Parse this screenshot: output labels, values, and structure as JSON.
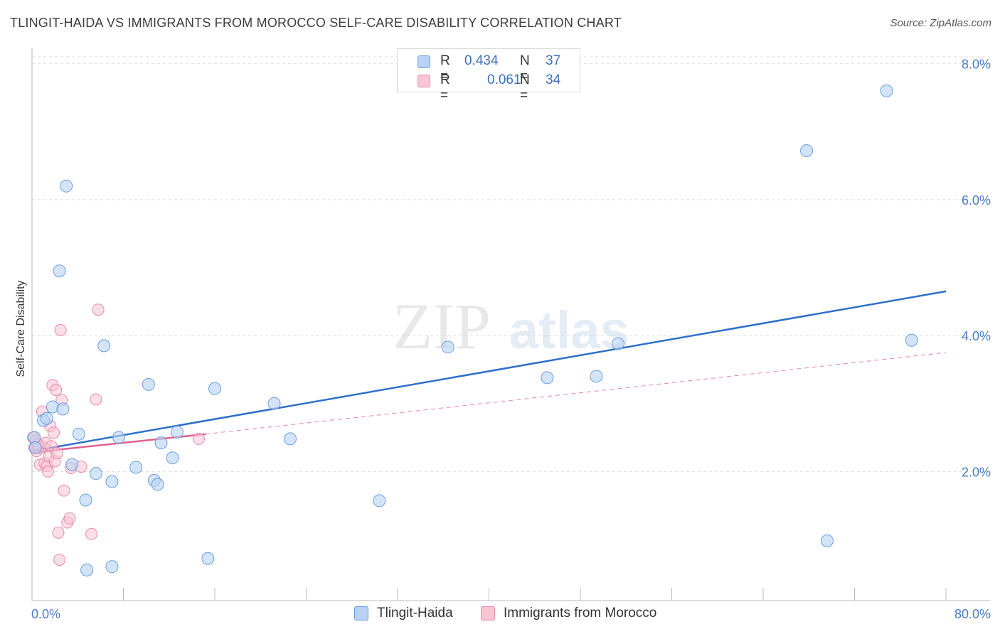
{
  "header": {
    "title": "TLINGIT-HAIDA VS IMMIGRANTS FROM MOROCCO SELF-CARE DISABILITY CORRELATION CHART",
    "source": "Source: ZipAtlas.com"
  },
  "watermark": {
    "zip": "ZIP",
    "atlas": "atlas"
  },
  "legend_top": [
    {
      "r_label": "R =",
      "r_value": "0.434",
      "n_label": "N =",
      "n_value": "37"
    },
    {
      "r_label": "R =",
      "r_value": "0.061",
      "n_label": "N =",
      "n_value": "34"
    }
  ],
  "colors": {
    "blue_fill": "#b7d2f3",
    "blue_stroke": "#6a9ee0",
    "blue_line": "#2f6fc8",
    "pink_fill": "#f8c5d4",
    "pink_stroke": "#e88aa8",
    "pink_line": "#e0628f",
    "tick_color": "#4a7cc9",
    "grid": "#dddddd"
  },
  "chart_data": {
    "type": "scatter",
    "title": "TLINGIT-HAIDA VS IMMIGRANTS FROM MOROCCO SELF-CARE DISABILITY CORRELATION CHART",
    "xlabel": "",
    "ylabel": "Self-Care Disability",
    "xlim": [
      0,
      80
    ],
    "ylim": [
      0.1,
      8.1
    ],
    "y_ticks": [
      2.0,
      4.0,
      6.0,
      8.0
    ],
    "y_tick_labels": [
      "2.0%",
      "4.0%",
      "6.0%",
      "8.0%"
    ],
    "x_tick_labels": [
      "0.0%",
      "80.0%"
    ],
    "legend": [
      "Tlingit-Haida",
      "Immigrants from Morocco"
    ],
    "series": [
      {
        "name": "Tlingit-Haida",
        "r": 0.434,
        "n": 37,
        "trend": {
          "x": [
            0,
            80
          ],
          "y": [
            2.3,
            4.65
          ],
          "style": "solid"
        },
        "points": [
          [
            0.2,
            2.5
          ],
          [
            1.0,
            2.75
          ],
          [
            1.3,
            2.78
          ],
          [
            1.8,
            2.95
          ],
          [
            2.4,
            4.95
          ],
          [
            2.7,
            2.92
          ],
          [
            3.0,
            6.2
          ],
          [
            3.5,
            2.1
          ],
          [
            4.1,
            2.55
          ],
          [
            4.7,
            1.58
          ],
          [
            4.8,
            0.55
          ],
          [
            5.6,
            1.97
          ],
          [
            6.3,
            3.85
          ],
          [
            7.0,
            1.85
          ],
          [
            7.0,
            0.6
          ],
          [
            7.6,
            2.5
          ],
          [
            9.1,
            2.06
          ],
          [
            10.2,
            3.28
          ],
          [
            10.7,
            1.87
          ],
          [
            11.0,
            1.81
          ],
          [
            11.3,
            2.42
          ],
          [
            12.3,
            2.2
          ],
          [
            12.7,
            2.58
          ],
          [
            15.4,
            0.72
          ],
          [
            16.0,
            3.22
          ],
          [
            21.2,
            3.0
          ],
          [
            22.6,
            2.48
          ],
          [
            30.4,
            1.57
          ],
          [
            36.4,
            3.83
          ],
          [
            45.1,
            3.38
          ],
          [
            49.4,
            3.4
          ],
          [
            51.3,
            3.88
          ],
          [
            67.8,
            6.72
          ],
          [
            69.6,
            0.98
          ],
          [
            74.8,
            7.6
          ],
          [
            77.0,
            3.93
          ],
          [
            0.3,
            2.35
          ]
        ]
      },
      {
        "name": "Immigrants from Morocco",
        "r": 0.061,
        "n": 34,
        "trend": {
          "x": [
            0,
            15.2
          ],
          "y": [
            2.28,
            2.55
          ],
          "style": "solid",
          "extension": {
            "x": [
              15.2,
              80
            ],
            "y": [
              2.55,
              3.75
            ],
            "style": "dashed"
          }
        },
        "points": [
          [
            0.1,
            2.5
          ],
          [
            0.2,
            2.35
          ],
          [
            0.3,
            2.45
          ],
          [
            0.4,
            2.3
          ],
          [
            0.6,
            2.35
          ],
          [
            0.7,
            2.1
          ],
          [
            0.9,
            2.88
          ],
          [
            1.0,
            2.36
          ],
          [
            1.1,
            2.12
          ],
          [
            1.2,
            2.42
          ],
          [
            1.3,
            2.08
          ],
          [
            1.4,
            2.0
          ],
          [
            1.5,
            2.22
          ],
          [
            1.6,
            2.67
          ],
          [
            1.7,
            2.37
          ],
          [
            1.8,
            3.27
          ],
          [
            1.9,
            2.57
          ],
          [
            2.0,
            2.15
          ],
          [
            2.1,
            3.2
          ],
          [
            2.2,
            2.27
          ],
          [
            2.3,
            1.1
          ],
          [
            2.4,
            0.7
          ],
          [
            2.5,
            4.08
          ],
          [
            2.6,
            3.05
          ],
          [
            2.8,
            1.72
          ],
          [
            3.1,
            1.25
          ],
          [
            3.3,
            1.31
          ],
          [
            3.4,
            2.05
          ],
          [
            4.3,
            2.07
          ],
          [
            5.2,
            1.08
          ],
          [
            5.6,
            3.06
          ],
          [
            5.8,
            4.38
          ],
          [
            14.6,
            2.48
          ],
          [
            0.5,
            2.4
          ]
        ]
      }
    ]
  },
  "legend_bottom": {
    "items": [
      {
        "label": "Tlingit-Haida"
      },
      {
        "label": "Immigrants from Morocco"
      }
    ]
  }
}
